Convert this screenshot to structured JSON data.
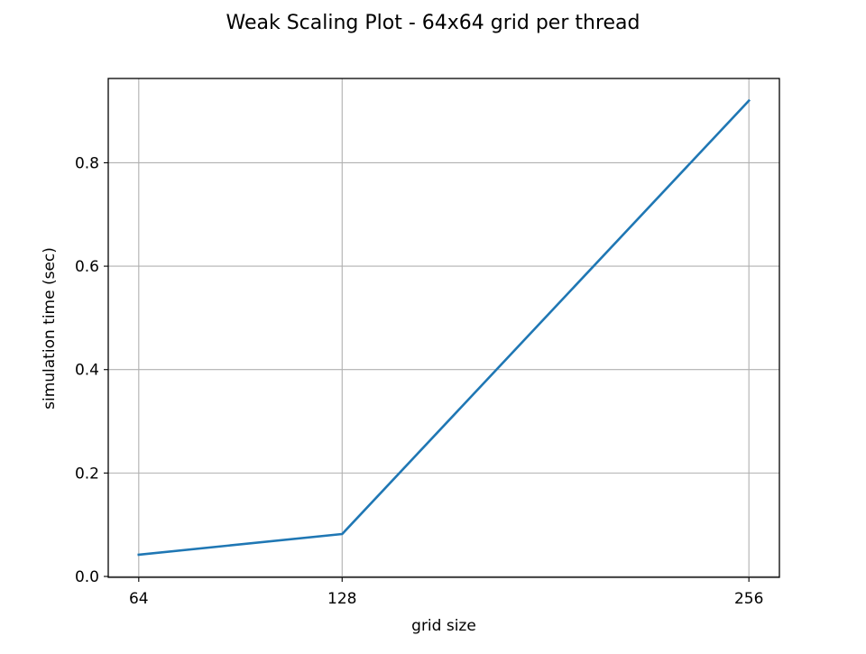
{
  "chart_data": {
    "type": "line",
    "title": "Weak Scaling Plot - 64x64 grid per thread",
    "xlabel": "grid size",
    "ylabel": "simulation time (sec)",
    "x": [
      64,
      128,
      256
    ],
    "series": [
      {
        "values": [
          0.042,
          0.082,
          0.92
        ]
      }
    ],
    "xlim": [
      54.4,
      265.6
    ],
    "ylim": [
      -0.0017,
      0.963
    ],
    "xticks": [
      64,
      128,
      256
    ],
    "xtick_labels": [
      "64",
      "128",
      "256"
    ],
    "yticks": [
      0.0,
      0.2,
      0.4,
      0.6,
      0.8
    ],
    "ytick_labels": [
      "0.0",
      "0.2",
      "0.4",
      "0.6",
      "0.8"
    ],
    "grid": true,
    "colors": {
      "line": "#1f77b4",
      "grid": "#b0b0b0",
      "axes": "#000000"
    }
  }
}
